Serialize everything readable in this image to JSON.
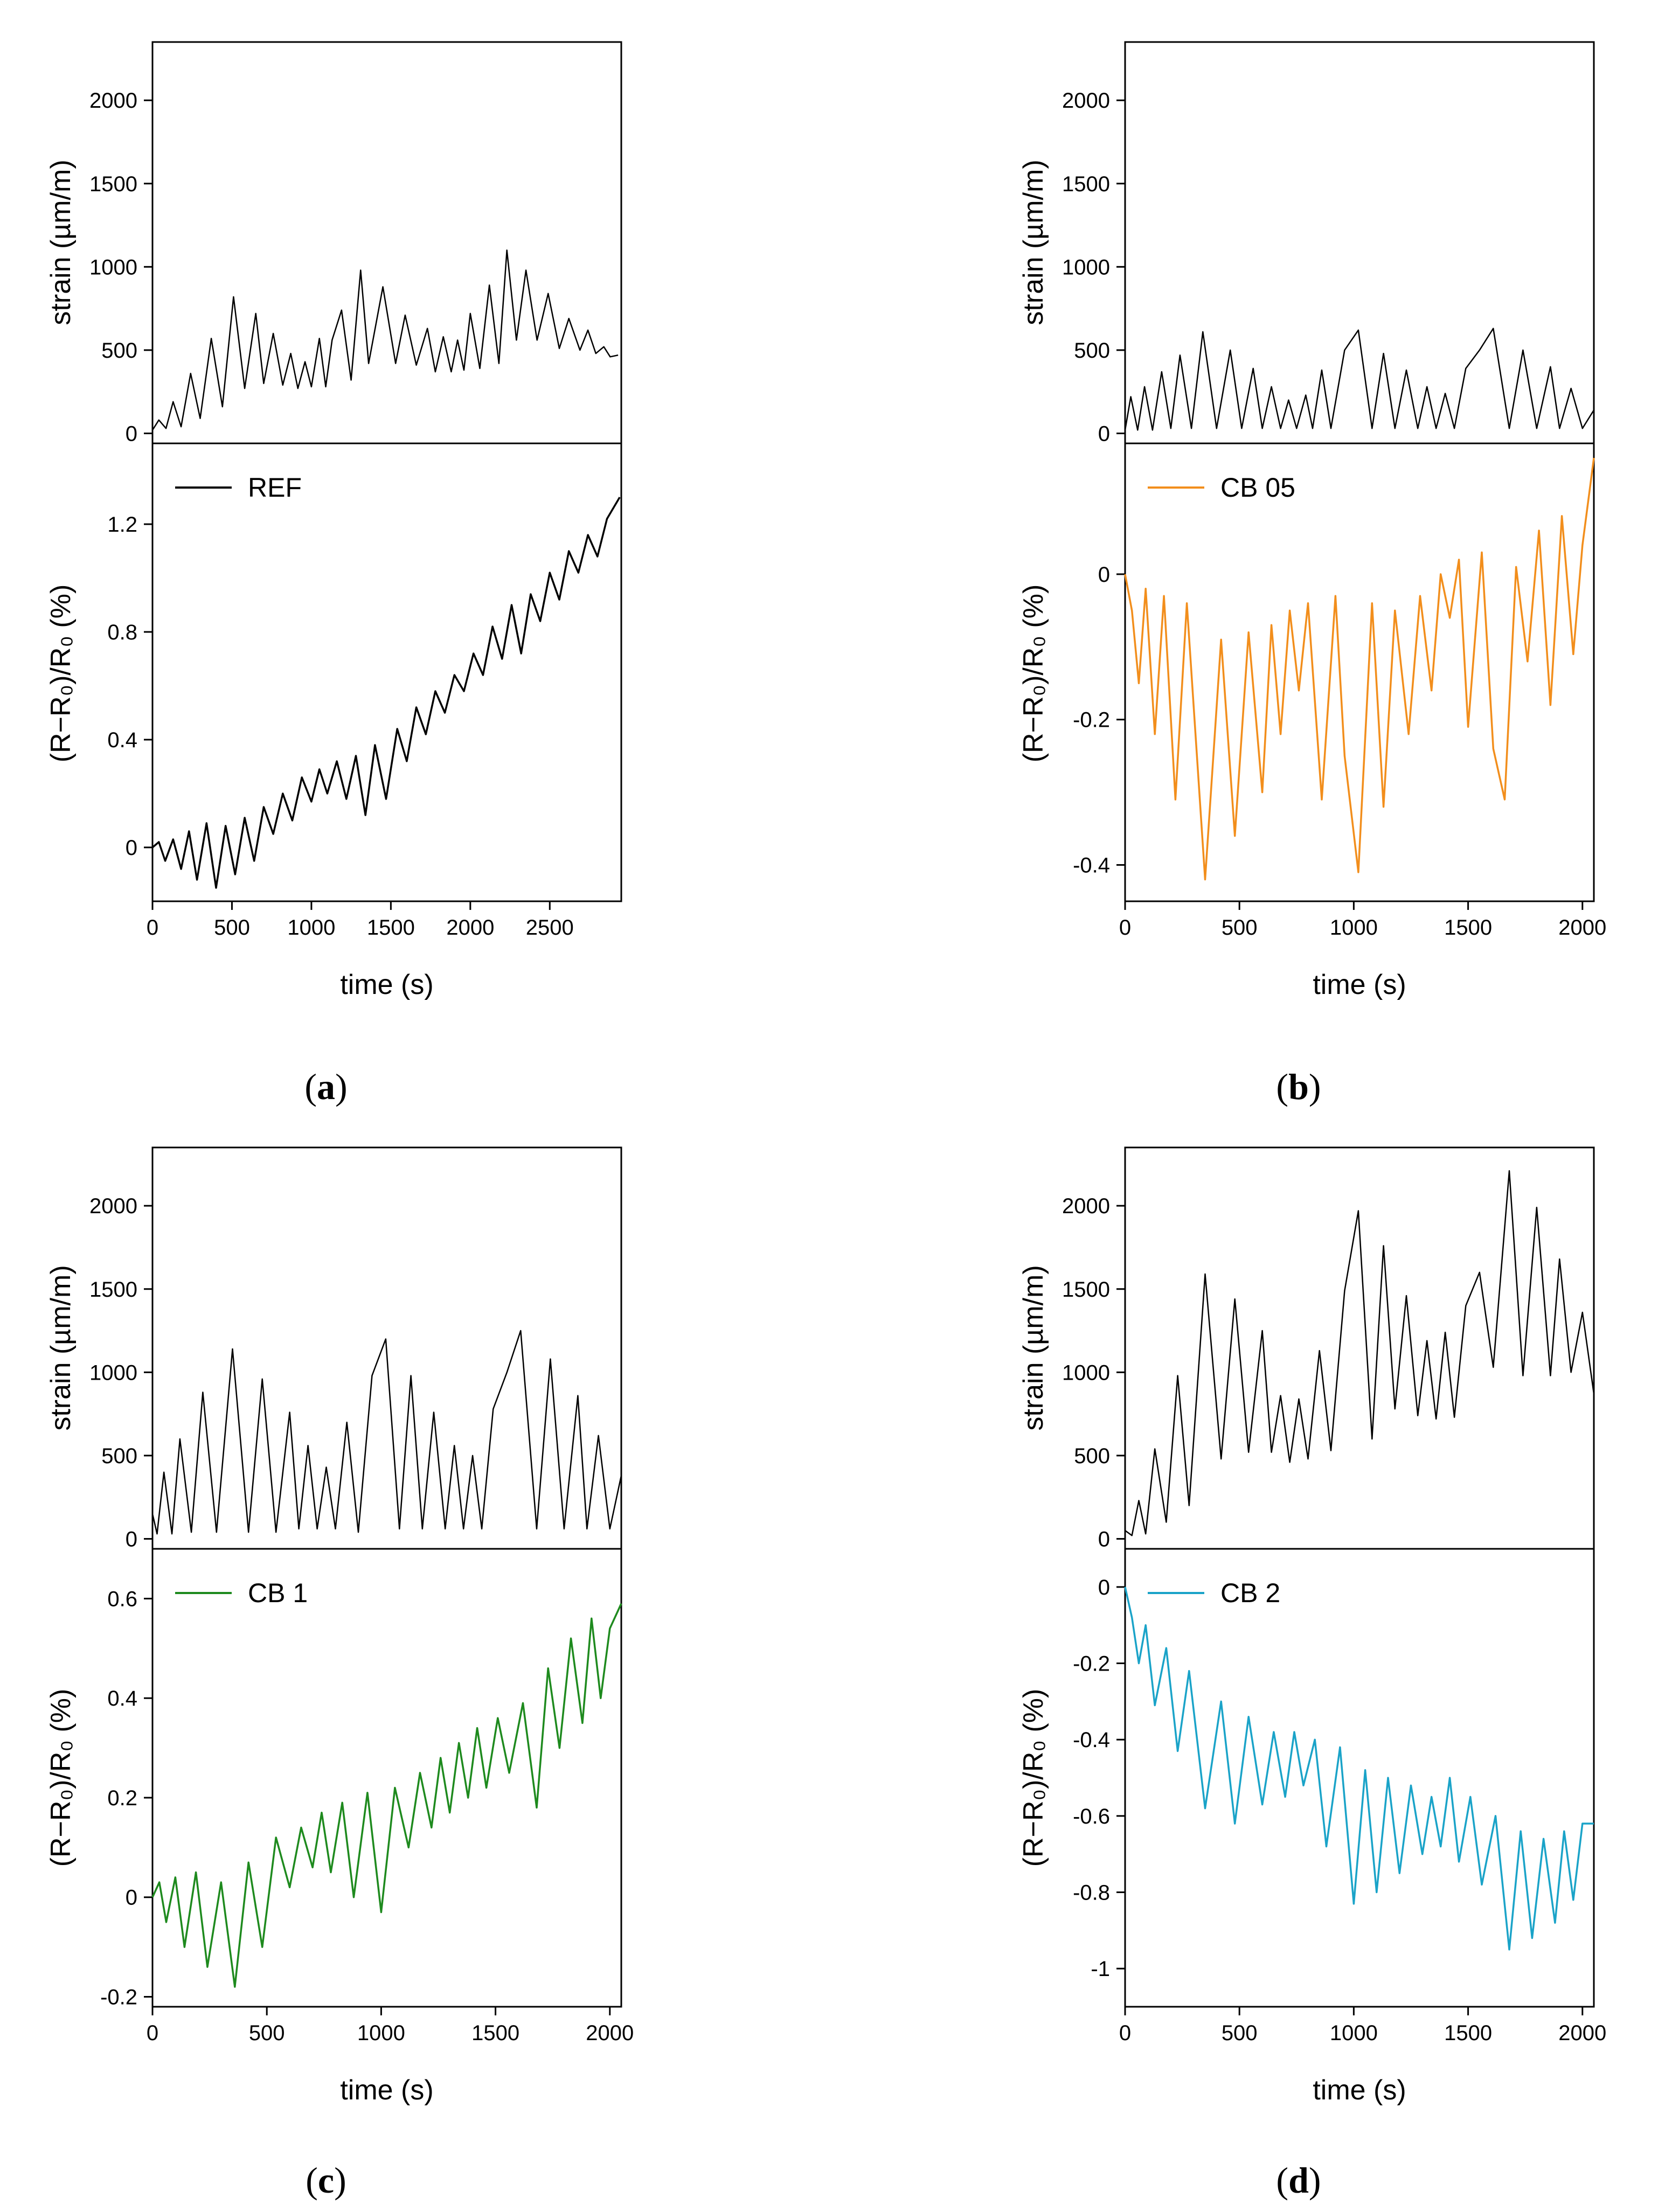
{
  "figure": {
    "panels": [
      {
        "label_prefix": "(",
        "label_letter": "a",
        "label_suffix": ")",
        "legend": "REF",
        "line_color": "#000000",
        "xlabel": "time (s)",
        "ylabel_strain": "strain (µm/m)",
        "ylabel_resistance": "(R−R₀)/R₀ (%)"
      },
      {
        "label_prefix": "(",
        "label_letter": "b",
        "label_suffix": ")",
        "legend": "CB 05",
        "line_color": "#f28e1c",
        "xlabel": "time (s)",
        "ylabel_strain": "strain (µm/m)",
        "ylabel_resistance": "(R−R₀)/R₀ (%)"
      },
      {
        "label_prefix": "(",
        "label_letter": "c",
        "label_suffix": ")",
        "legend": "CB 1",
        "line_color": "#1e8a1e",
        "xlabel": "time (s)",
        "ylabel_strain": "strain (µm/m)",
        "ylabel_resistance": "(R−R₀)/R₀ (%)"
      },
      {
        "label_prefix": "(",
        "label_letter": "d",
        "label_suffix": ")",
        "legend": "CB 2",
        "line_color": "#1aa3c8",
        "xlabel": "time (s)",
        "ylabel_strain": "strain (µm/m)",
        "ylabel_resistance": "(R−R₀)/R₀ (%)"
      }
    ]
  },
  "chart_data": [
    {
      "type": "line",
      "panel": "a",
      "title": "",
      "xlabel": "time (s)",
      "xlim": [
        0,
        2950
      ],
      "xticks": [
        0,
        500,
        1000,
        1500,
        2000,
        2500
      ],
      "top": {
        "ylabel": "strain (µm/m)",
        "ylim": [
          -60,
          2350
        ],
        "yticks": [
          0,
          500,
          1000,
          1500,
          2000
        ],
        "series": [
          {
            "name": "strain",
            "color": "#000000",
            "x": [
              0,
              40,
              85,
              130,
              180,
              240,
              300,
              370,
              440,
              510,
              580,
              650,
              700,
              760,
              820,
              870,
              915,
              960,
              1000,
              1050,
              1090,
              1130,
              1190,
              1250,
              1310,
              1360,
              1450,
              1530,
              1590,
              1660,
              1730,
              1780,
              1830,
              1880,
              1920,
              1960,
              2000,
              2060,
              2120,
              2180,
              2230,
              2290,
              2350,
              2420,
              2490,
              2560,
              2620,
              2690,
              2740,
              2790,
              2840,
              2880,
              2930
            ],
            "y": [
              20,
              80,
              30,
              190,
              40,
              360,
              90,
              570,
              160,
              820,
              270,
              720,
              300,
              600,
              290,
              480,
              270,
              430,
              280,
              570,
              280,
              560,
              740,
              320,
              980,
              420,
              880,
              420,
              710,
              410,
              630,
              370,
              580,
              370,
              560,
              380,
              720,
              390,
              890,
              420,
              1100,
              560,
              980,
              560,
              840,
              510,
              690,
              500,
              620,
              480,
              520,
              460,
              470
            ]
          }
        ]
      },
      "bottom": {
        "ylabel": "(R−R₀)/R₀ (%)",
        "ylim": [
          -0.2,
          1.5
        ],
        "yticks": [
          0.0,
          0.4,
          0.8,
          1.2
        ],
        "series": [
          {
            "name": "REF",
            "color": "#000000",
            "x": [
              0,
              40,
              80,
              130,
              180,
              230,
              280,
              340,
              400,
              460,
              520,
              580,
              640,
              700,
              760,
              820,
              880,
              940,
              1000,
              1050,
              1100,
              1160,
              1220,
              1280,
              1340,
              1400,
              1470,
              1540,
              1600,
              1660,
              1720,
              1780,
              1840,
              1900,
              1960,
              2020,
              2080,
              2140,
              2200,
              2260,
              2320,
              2380,
              2440,
              2500,
              2560,
              2620,
              2680,
              2740,
              2800,
              2860,
              2940
            ],
            "y": [
              0.0,
              0.02,
              -0.05,
              0.03,
              -0.08,
              0.06,
              -0.12,
              0.09,
              -0.15,
              0.08,
              -0.1,
              0.11,
              -0.05,
              0.15,
              0.05,
              0.2,
              0.1,
              0.26,
              0.17,
              0.29,
              0.2,
              0.32,
              0.18,
              0.34,
              0.12,
              0.38,
              0.18,
              0.44,
              0.32,
              0.52,
              0.42,
              0.58,
              0.5,
              0.64,
              0.58,
              0.72,
              0.64,
              0.82,
              0.7,
              0.9,
              0.72,
              0.94,
              0.84,
              1.02,
              0.92,
              1.1,
              1.02,
              1.16,
              1.08,
              1.22,
              1.3
            ]
          }
        ]
      }
    },
    {
      "type": "line",
      "panel": "b",
      "title": "",
      "xlabel": "time (s)",
      "xlim": [
        0,
        2050
      ],
      "xticks": [
        0,
        500,
        1000,
        1500,
        2000
      ],
      "top": {
        "ylabel": "strain (µm/m)",
        "ylim": [
          -60,
          2350
        ],
        "yticks": [
          0,
          500,
          1000,
          1500,
          2000
        ],
        "series": [
          {
            "name": "strain",
            "color": "#000000",
            "x": [
              0,
              25,
              55,
              85,
              120,
              160,
              200,
              240,
              290,
              340,
              400,
              460,
              510,
              560,
              600,
              640,
              680,
              715,
              750,
              790,
              820,
              860,
              900,
              960,
              1020,
              1080,
              1130,
              1180,
              1230,
              1280,
              1320,
              1360,
              1400,
              1440,
              1490,
              1550,
              1610,
              1680,
              1740,
              1800,
              1860,
              1900,
              1950,
              2000,
              2050
            ],
            "y": [
              20,
              220,
              20,
              280,
              20,
              370,
              30,
              470,
              30,
              610,
              30,
              500,
              30,
              390,
              30,
              280,
              30,
              200,
              30,
              230,
              30,
              380,
              30,
              500,
              620,
              30,
              480,
              30,
              380,
              30,
              280,
              30,
              240,
              30,
              390,
              500,
              630,
              30,
              500,
              30,
              400,
              30,
              270,
              30,
              140
            ]
          }
        ]
      },
      "bottom": {
        "ylabel": "(R−R₀)/R₀ (%)",
        "ylim": [
          -0.45,
          0.18
        ],
        "yticks": [
          -0.4,
          -0.2,
          0.0
        ],
        "series": [
          {
            "name": "CB 05",
            "color": "#f28e1c",
            "x": [
              0,
              30,
              60,
              90,
              130,
              170,
              220,
              270,
              350,
              420,
              480,
              540,
              600,
              640,
              680,
              720,
              760,
              800,
              860,
              920,
              960,
              1020,
              1080,
              1130,
              1180,
              1240,
              1290,
              1340,
              1380,
              1420,
              1460,
              1500,
              1560,
              1610,
              1660,
              1710,
              1760,
              1810,
              1860,
              1910,
              1960,
              2000,
              2050
            ],
            "y": [
              0.0,
              -0.05,
              -0.15,
              -0.02,
              -0.22,
              -0.03,
              -0.31,
              -0.04,
              -0.42,
              -0.09,
              -0.36,
              -0.08,
              -0.3,
              -0.07,
              -0.22,
              -0.05,
              -0.16,
              -0.04,
              -0.31,
              -0.03,
              -0.25,
              -0.41,
              -0.04,
              -0.32,
              -0.05,
              -0.22,
              -0.03,
              -0.16,
              0.0,
              -0.06,
              0.02,
              -0.21,
              0.03,
              -0.24,
              -0.31,
              0.01,
              -0.12,
              0.06,
              -0.18,
              0.08,
              -0.11,
              0.04,
              0.16
            ]
          }
        ]
      }
    },
    {
      "type": "line",
      "panel": "c",
      "title": "",
      "xlabel": "time (s)",
      "xlim": [
        0,
        2050
      ],
      "xticks": [
        0,
        500,
        1000,
        1500,
        2000
      ],
      "top": {
        "ylabel": "strain (µm/m)",
        "ylim": [
          -60,
          2350
        ],
        "yticks": [
          0,
          500,
          1000,
          1500,
          2000
        ],
        "series": [
          {
            "name": "strain",
            "color": "#000000",
            "x": [
              0,
              20,
              50,
              85,
              120,
              170,
              220,
              280,
              350,
              420,
              480,
              540,
              600,
              640,
              680,
              720,
              760,
              800,
              850,
              900,
              960,
              1020,
              1080,
              1130,
              1180,
              1230,
              1280,
              1320,
              1360,
              1400,
              1440,
              1490,
              1550,
              1610,
              1680,
              1740,
              1800,
              1860,
              1900,
              1950,
              2000,
              2050
            ],
            "y": [
              150,
              30,
              400,
              30,
              600,
              40,
              880,
              40,
              1140,
              40,
              960,
              40,
              760,
              60,
              560,
              60,
              430,
              60,
              700,
              40,
              980,
              1200,
              60,
              980,
              60,
              760,
              60,
              560,
              60,
              500,
              60,
              780,
              1000,
              1250,
              60,
              1080,
              60,
              860,
              60,
              620,
              60,
              380
            ]
          }
        ]
      },
      "bottom": {
        "ylabel": "(R−R₀)/R₀ (%)",
        "ylim": [
          -0.22,
          0.7
        ],
        "yticks": [
          -0.2,
          0.0,
          0.2,
          0.4,
          0.6
        ],
        "series": [
          {
            "name": "CB 1",
            "color": "#1e8a1e",
            "x": [
              0,
              30,
              60,
              100,
              140,
              190,
              240,
              300,
              360,
              420,
              480,
              540,
              600,
              650,
              700,
              740,
              780,
              830,
              880,
              940,
              1000,
              1060,
              1120,
              1170,
              1220,
              1260,
              1300,
              1340,
              1380,
              1420,
              1460,
              1510,
              1560,
              1620,
              1680,
              1730,
              1780,
              1830,
              1880,
              1920,
              1960,
              2000,
              2050
            ],
            "y": [
              0.0,
              0.03,
              -0.05,
              0.04,
              -0.1,
              0.05,
              -0.14,
              0.03,
              -0.18,
              0.07,
              -0.1,
              0.12,
              0.02,
              0.14,
              0.06,
              0.17,
              0.05,
              0.19,
              0.0,
              0.21,
              -0.03,
              0.22,
              0.1,
              0.25,
              0.14,
              0.28,
              0.17,
              0.31,
              0.2,
              0.34,
              0.22,
              0.36,
              0.25,
              0.39,
              0.18,
              0.46,
              0.3,
              0.52,
              0.35,
              0.56,
              0.4,
              0.54,
              0.59
            ]
          }
        ]
      }
    },
    {
      "type": "line",
      "panel": "d",
      "title": "",
      "xlabel": "time (s)",
      "xlim": [
        0,
        2050
      ],
      "xticks": [
        0,
        500,
        1000,
        1500,
        2000
      ],
      "top": {
        "ylabel": "strain (µm/m)",
        "ylim": [
          -60,
          2350
        ],
        "yticks": [
          0,
          500,
          1000,
          1500,
          2000
        ],
        "series": [
          {
            "name": "strain",
            "color": "#000000",
            "x": [
              0,
              30,
              60,
              90,
              130,
              180,
              230,
              280,
              350,
              420,
              480,
              540,
              600,
              640,
              680,
              720,
              760,
              800,
              850,
              900,
              960,
              1020,
              1080,
              1130,
              1180,
              1230,
              1280,
              1320,
              1360,
              1400,
              1440,
              1490,
              1550,
              1610,
              1680,
              1740,
              1800,
              1860,
              1900,
              1950,
              2000,
              2050
            ],
            "y": [
              50,
              20,
              230,
              30,
              540,
              100,
              980,
              200,
              1590,
              480,
              1440,
              520,
              1250,
              520,
              860,
              460,
              840,
              480,
              1130,
              530,
              1490,
              1970,
              600,
              1760,
              780,
              1460,
              740,
              1190,
              720,
              1240,
              730,
              1400,
              1600,
              1030,
              2210,
              980,
              1990,
              980,
              1680,
              1000,
              1360,
              870
            ]
          }
        ]
      },
      "bottom": {
        "ylabel": "(R−R₀)/R₀ (%)",
        "ylim": [
          -1.1,
          0.1
        ],
        "yticks": [
          -1.0,
          -0.8,
          -0.6,
          -0.4,
          -0.2,
          0.0
        ],
        "series": [
          {
            "name": "CB 2",
            "color": "#1aa3c8",
            "x": [
              0,
              30,
              60,
              90,
              130,
              180,
              230,
              280,
              350,
              420,
              480,
              540,
              600,
              650,
              700,
              740,
              780,
              830,
              880,
              940,
              1000,
              1050,
              1100,
              1150,
              1200,
              1250,
              1300,
              1340,
              1380,
              1420,
              1460,
              1510,
              1560,
              1620,
              1680,
              1730,
              1780,
              1830,
              1880,
              1920,
              1960,
              2000,
              2050
            ],
            "y": [
              0.0,
              -0.08,
              -0.2,
              -0.1,
              -0.31,
              -0.16,
              -0.43,
              -0.22,
              -0.58,
              -0.3,
              -0.62,
              -0.34,
              -0.57,
              -0.38,
              -0.55,
              -0.38,
              -0.52,
              -0.4,
              -0.68,
              -0.42,
              -0.83,
              -0.48,
              -0.8,
              -0.5,
              -0.75,
              -0.52,
              -0.7,
              -0.55,
              -0.68,
              -0.5,
              -0.72,
              -0.55,
              -0.78,
              -0.6,
              -0.95,
              -0.64,
              -0.92,
              -0.66,
              -0.88,
              -0.64,
              -0.82,
              -0.62,
              -0.62
            ]
          }
        ]
      }
    }
  ]
}
